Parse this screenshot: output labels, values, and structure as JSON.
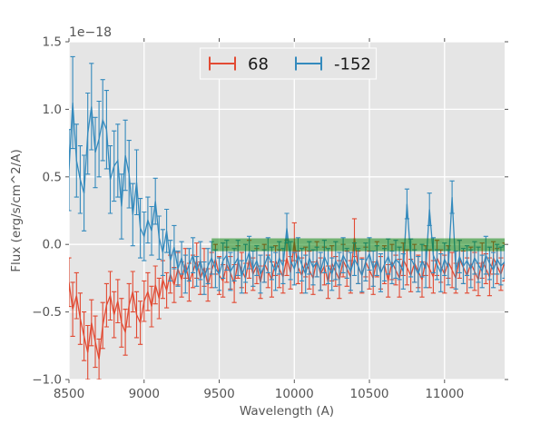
{
  "figure": {
    "background": "#ffffff",
    "axes_background": "#e5e5e5",
    "grid_color": "#ffffff",
    "tick_color": "#555555",
    "label_color": "#555555",
    "legend_text_color": "#1a1a1a",
    "legend_face_color": "#e5e5e5",
    "legend_edge_color": "#fbfbfb",
    "offset_text": "1e−18"
  },
  "chart_data": {
    "type": "line",
    "subtype": "errorbar-spectrum",
    "title": "",
    "xlabel": "Wavelength (A)",
    "ylabel": "Flux (erg/s/cm^2/A)",
    "xlim": [
      8500,
      11400
    ],
    "ylim": [
      -1.0,
      1.5
    ],
    "xticks": [
      8500,
      9000,
      9500,
      10000,
      10500,
      11000
    ],
    "yticks": [
      -1.0,
      -0.5,
      0.0,
      0.5,
      1.0,
      1.5
    ],
    "y_offset_text": "1e−18",
    "grid": true,
    "legend": {
      "position": "upper center",
      "entries": [
        {
          "label": "68",
          "color": "#e24a33"
        },
        {
          "label": "-152",
          "color": "#348abd"
        }
      ]
    },
    "band": {
      "x_start": 9450,
      "x_end": 11400,
      "y_low": -0.05,
      "y_high": 0.045,
      "color": "#007f00",
      "alpha": 0.5
    },
    "x": [
      8500,
      8525,
      8550,
      8575,
      8600,
      8625,
      8650,
      8675,
      8700,
      8725,
      8750,
      8775,
      8800,
      8825,
      8850,
      8875,
      8900,
      8925,
      8950,
      8975,
      9000,
      9025,
      9050,
      9075,
      9100,
      9125,
      9150,
      9175,
      9200,
      9225,
      9250,
      9275,
      9300,
      9325,
      9350,
      9375,
      9400,
      9425,
      9450,
      9475,
      9500,
      9525,
      9550,
      9575,
      9600,
      9625,
      9650,
      9675,
      9700,
      9725,
      9750,
      9775,
      9800,
      9825,
      9850,
      9875,
      9900,
      9925,
      9950,
      9975,
      10000,
      10025,
      10050,
      10075,
      10100,
      10125,
      10150,
      10175,
      10200,
      10225,
      10250,
      10275,
      10300,
      10325,
      10350,
      10375,
      10400,
      10425,
      10450,
      10475,
      10500,
      10525,
      10550,
      10575,
      10600,
      10625,
      10650,
      10675,
      10700,
      10725,
      10750,
      10775,
      10800,
      10825,
      10850,
      10875,
      10900,
      10925,
      10950,
      10975,
      11000,
      11025,
      11050,
      11075,
      11100,
      11125,
      11150,
      11175,
      11200,
      11225,
      11250,
      11275,
      11300,
      11325,
      11350,
      11375,
      11400
    ],
    "series": [
      {
        "name": "68",
        "color": "#e24a33",
        "values": [
          -0.28,
          -0.48,
          -0.38,
          -0.55,
          -0.68,
          -0.8,
          -0.58,
          -0.72,
          -0.85,
          -0.6,
          -0.45,
          -0.38,
          -0.52,
          -0.42,
          -0.58,
          -0.65,
          -0.45,
          -0.35,
          -0.52,
          -0.58,
          -0.42,
          -0.35,
          -0.46,
          -0.3,
          -0.4,
          -0.26,
          -0.34,
          -0.22,
          -0.3,
          -0.18,
          -0.26,
          -0.14,
          -0.28,
          -0.2,
          -0.12,
          -0.25,
          -0.17,
          -0.3,
          -0.19,
          -0.11,
          -0.23,
          -0.27,
          -0.15,
          -0.21,
          -0.29,
          -0.13,
          -0.19,
          -0.25,
          -0.11,
          -0.22,
          -0.16,
          -0.28,
          -0.14,
          -0.2,
          -0.26,
          -0.12,
          -0.18,
          -0.24,
          -0.1,
          -0.21,
          0.02,
          -0.17,
          -0.23,
          -0.13,
          -0.19,
          -0.25,
          -0.11,
          -0.22,
          -0.16,
          -0.28,
          -0.14,
          -0.2,
          -0.26,
          -0.12,
          -0.18,
          -0.24,
          0.05,
          -0.17,
          -0.23,
          -0.13,
          -0.19,
          -0.25,
          -0.11,
          -0.21,
          -0.15,
          -0.27,
          -0.13,
          -0.19,
          -0.25,
          -0.11,
          -0.17,
          -0.23,
          -0.14,
          -0.2,
          -0.26,
          -0.12,
          -0.18,
          -0.24,
          -0.1,
          -0.16,
          -0.22,
          -0.13,
          -0.19,
          -0.25,
          -0.11,
          -0.17,
          -0.23,
          -0.14,
          -0.2,
          -0.26,
          -0.12,
          -0.18,
          -0.24,
          -0.1,
          -0.16,
          -0.22,
          -0.13
        ],
        "errors": [
          0.18,
          0.2,
          0.17,
          0.19,
          0.18,
          0.2,
          0.17,
          0.19,
          0.15,
          0.17,
          0.16,
          0.18,
          0.17,
          0.16,
          0.18,
          0.17,
          0.16,
          0.15,
          0.17,
          0.16,
          0.15,
          0.14,
          0.15,
          0.14,
          0.15,
          0.14,
          0.13,
          0.14,
          0.13,
          0.12,
          0.13,
          0.11,
          0.14,
          0.12,
          0.13,
          0.12,
          0.14,
          0.12,
          0.13,
          0.11,
          0.14,
          0.12,
          0.13,
          0.12,
          0.14,
          0.12,
          0.13,
          0.11,
          0.14,
          0.12,
          0.13,
          0.12,
          0.14,
          0.12,
          0.13,
          0.11,
          0.14,
          0.12,
          0.13,
          0.12,
          0.14,
          0.12,
          0.13,
          0.11,
          0.14,
          0.12,
          0.13,
          0.12,
          0.14,
          0.12,
          0.13,
          0.11,
          0.14,
          0.12,
          0.13,
          0.12,
          0.14,
          0.12,
          0.13,
          0.11,
          0.14,
          0.12,
          0.13,
          0.12,
          0.14,
          0.12,
          0.13,
          0.11,
          0.14,
          0.12,
          0.13,
          0.12,
          0.14,
          0.12,
          0.13,
          0.11,
          0.14,
          0.12,
          0.13,
          0.12,
          0.14,
          0.12,
          0.13,
          0.11,
          0.14,
          0.12,
          0.13,
          0.12,
          0.14,
          0.12,
          0.13,
          0.11,
          0.14,
          0.12,
          0.13,
          0.12,
          0.14
        ]
      },
      {
        "name": "-152",
        "color": "#348abd",
        "values": [
          0.55,
          1.05,
          0.62,
          0.48,
          0.38,
          0.82,
          1.02,
          0.68,
          0.78,
          0.92,
          0.85,
          0.48,
          0.58,
          0.62,
          0.28,
          0.66,
          0.52,
          0.22,
          0.46,
          0.12,
          0.06,
          0.18,
          0.1,
          0.32,
          0.05,
          -0.06,
          0.1,
          -0.12,
          -0.02,
          -0.18,
          -0.1,
          -0.22,
          -0.15,
          -0.08,
          -0.2,
          -0.12,
          -0.25,
          -0.16,
          -0.1,
          -0.18,
          -0.22,
          -0.12,
          -0.08,
          -0.2,
          -0.15,
          -0.1,
          -0.24,
          -0.14,
          -0.06,
          -0.18,
          -0.12,
          -0.22,
          -0.16,
          -0.08,
          -0.14,
          -0.2,
          -0.1,
          -0.16,
          0.12,
          -0.12,
          -0.18,
          -0.08,
          -0.15,
          -0.22,
          -0.1,
          -0.17,
          -0.13,
          -0.2,
          -0.09,
          -0.16,
          -0.22,
          -0.12,
          -0.18,
          -0.08,
          -0.14,
          -0.2,
          -0.11,
          -0.16,
          -0.23,
          -0.13,
          -0.07,
          -0.18,
          -0.12,
          -0.21,
          -0.15,
          -0.09,
          -0.17,
          -0.11,
          -0.14,
          -0.2,
          0.3,
          -0.1,
          -0.16,
          -0.22,
          -0.12,
          -0.18,
          0.26,
          -0.08,
          -0.15,
          -0.21,
          -0.11,
          -0.17,
          0.35,
          -0.19,
          -0.09,
          -0.16,
          -0.12,
          -0.18,
          -0.1,
          -0.15,
          -0.2,
          -0.08,
          -0.14,
          -0.19,
          -0.11,
          -0.16,
          -0.13
        ],
        "errors": [
          0.3,
          0.34,
          0.27,
          0.25,
          0.28,
          0.3,
          0.32,
          0.26,
          0.28,
          0.3,
          0.29,
          0.25,
          0.26,
          0.27,
          0.24,
          0.26,
          0.25,
          0.23,
          0.24,
          0.22,
          0.18,
          0.17,
          0.18,
          0.17,
          0.16,
          0.17,
          0.16,
          0.15,
          0.16,
          0.13,
          0.12,
          0.14,
          0.12,
          0.13,
          0.11,
          0.14,
          0.12,
          0.13,
          0.12,
          0.14,
          0.12,
          0.13,
          0.11,
          0.14,
          0.12,
          0.13,
          0.12,
          0.14,
          0.12,
          0.13,
          0.11,
          0.14,
          0.12,
          0.13,
          0.12,
          0.14,
          0.12,
          0.13,
          0.11,
          0.14,
          0.12,
          0.13,
          0.12,
          0.14,
          0.12,
          0.13,
          0.11,
          0.14,
          0.12,
          0.13,
          0.12,
          0.14,
          0.12,
          0.13,
          0.11,
          0.14,
          0.12,
          0.13,
          0.12,
          0.14,
          0.12,
          0.13,
          0.11,
          0.14,
          0.12,
          0.13,
          0.12,
          0.14,
          0.12,
          0.13,
          0.11,
          0.14,
          0.12,
          0.13,
          0.12,
          0.14,
          0.12,
          0.13,
          0.11,
          0.14,
          0.12,
          0.13,
          0.12,
          0.14,
          0.12,
          0.13,
          0.11,
          0.14,
          0.12,
          0.13,
          0.12,
          0.14,
          0.12,
          0.13,
          0.11,
          0.14,
          0.12
        ]
      }
    ]
  }
}
